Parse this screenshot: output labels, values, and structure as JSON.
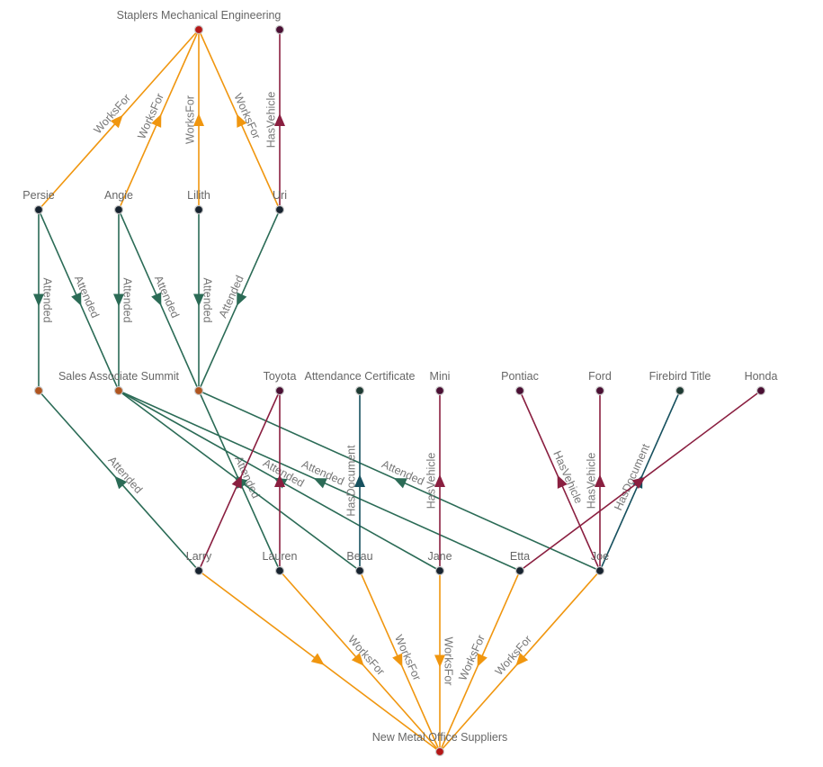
{
  "edge_colors": {
    "WorksFor": "#f0960f",
    "Attended": "#2b6b56",
    "HasVehicle": "#8a1f40",
    "HasDocument": "#17515f"
  },
  "node_colors": {
    "company": "#b51717",
    "person": "#17232f",
    "event": "#b0551f",
    "vehicle": "#4a0f33",
    "document": "#1d3a32"
  },
  "nodes": [
    {
      "id": "staplers",
      "label": "Staplers Mechanical Engineering",
      "type": "company"
    },
    {
      "id": "uriveh",
      "label": "",
      "type": "vehicle"
    },
    {
      "id": "persie",
      "label": "Persie",
      "type": "person"
    },
    {
      "id": "angie",
      "label": "Angie",
      "type": "person"
    },
    {
      "id": "lilith",
      "label": "Lilith",
      "type": "person"
    },
    {
      "id": "uri",
      "label": "Uri",
      "type": "person"
    },
    {
      "id": "ev1",
      "label": "",
      "type": "event"
    },
    {
      "id": "summit",
      "label": "Sales Associate Summit",
      "type": "event"
    },
    {
      "id": "ev3",
      "label": "",
      "type": "event"
    },
    {
      "id": "toyota",
      "label": "Toyota",
      "type": "vehicle"
    },
    {
      "id": "cert",
      "label": "Attendance Certificate",
      "type": "document"
    },
    {
      "id": "mini",
      "label": "Mini",
      "type": "vehicle"
    },
    {
      "id": "pontiac",
      "label": "Pontiac",
      "type": "vehicle"
    },
    {
      "id": "ford",
      "label": "Ford",
      "type": "vehicle"
    },
    {
      "id": "firebird",
      "label": "Firebird Title",
      "type": "document"
    },
    {
      "id": "honda",
      "label": "Honda",
      "type": "vehicle"
    },
    {
      "id": "larry",
      "label": "Larry",
      "type": "person"
    },
    {
      "id": "lauren",
      "label": "Lauren",
      "type": "person"
    },
    {
      "id": "beau",
      "label": "Beau",
      "type": "person"
    },
    {
      "id": "jane",
      "label": "Jane",
      "type": "person"
    },
    {
      "id": "etta",
      "label": "Etta",
      "type": "person"
    },
    {
      "id": "joe",
      "label": "Joe",
      "type": "person"
    },
    {
      "id": "newmetal",
      "label": "New Metal Office Suppliers",
      "type": "company"
    }
  ],
  "edges": [
    {
      "from": "persie",
      "to": "staplers",
      "type": "WorksFor",
      "label": "WorksFor"
    },
    {
      "from": "angie",
      "to": "staplers",
      "type": "WorksFor",
      "label": "WorksFor"
    },
    {
      "from": "lilith",
      "to": "staplers",
      "type": "WorksFor",
      "label": "WorksFor"
    },
    {
      "from": "uri",
      "to": "staplers",
      "type": "WorksFor",
      "label": "WorksFor"
    },
    {
      "from": "uri",
      "to": "uriveh",
      "type": "HasVehicle",
      "label": "HasVehicle"
    },
    {
      "from": "persie",
      "to": "ev1",
      "type": "Attended",
      "label": "Attended"
    },
    {
      "from": "persie",
      "to": "summit",
      "type": "Attended",
      "label": "Attended"
    },
    {
      "from": "angie",
      "to": "summit",
      "type": "Attended",
      "label": "Attended"
    },
    {
      "from": "angie",
      "to": "ev3",
      "type": "Attended",
      "label": "Attended"
    },
    {
      "from": "lilith",
      "to": "ev3",
      "type": "Attended",
      "label": "Attended"
    },
    {
      "from": "uri",
      "to": "ev3",
      "type": "Attended",
      "label": "Attended"
    },
    {
      "from": "larry",
      "to": "ev1",
      "type": "Attended",
      "label": "Attended"
    },
    {
      "from": "lauren",
      "to": "ev3",
      "type": "Attended",
      "label": "Attended"
    },
    {
      "from": "beau",
      "to": "summit",
      "type": "Attended",
      "label": ""
    },
    {
      "from": "jane",
      "to": "summit",
      "type": "Attended",
      "label": "Attended"
    },
    {
      "from": "etta",
      "to": "summit",
      "type": "Attended",
      "label": "Attended"
    },
    {
      "from": "joe",
      "to": "ev3",
      "type": "Attended",
      "label": "Attended"
    },
    {
      "from": "larry",
      "to": "toyota",
      "type": "HasVehicle",
      "label": ""
    },
    {
      "from": "lauren",
      "to": "toyota",
      "type": "HasVehicle",
      "label": ""
    },
    {
      "from": "beau",
      "to": "cert",
      "type": "HasDocument",
      "label": "HasDocument"
    },
    {
      "from": "jane",
      "to": "mini",
      "type": "HasVehicle",
      "label": "HasVehicle"
    },
    {
      "from": "joe",
      "to": "pontiac",
      "type": "HasVehicle",
      "label": "HasVehicle"
    },
    {
      "from": "joe",
      "to": "ford",
      "type": "HasVehicle",
      "label": "HasVehicle"
    },
    {
      "from": "joe",
      "to": "firebird",
      "type": "HasDocument",
      "label": "HasDocument"
    },
    {
      "from": "etta",
      "to": "honda",
      "type": "HasVehicle",
      "label": ""
    },
    {
      "from": "larry",
      "to": "newmetal",
      "type": "WorksFor",
      "label": ""
    },
    {
      "from": "lauren",
      "to": "newmetal",
      "type": "WorksFor",
      "label": "WorksFor"
    },
    {
      "from": "beau",
      "to": "newmetal",
      "type": "WorksFor",
      "label": "WorksFor"
    },
    {
      "from": "jane",
      "to": "newmetal",
      "type": "WorksFor",
      "label": "WorksFor"
    },
    {
      "from": "etta",
      "to": "newmetal",
      "type": "WorksFor",
      "label": "WorksFor"
    },
    {
      "from": "joe",
      "to": "newmetal",
      "type": "WorksFor",
      "label": "WorksFor"
    }
  ]
}
